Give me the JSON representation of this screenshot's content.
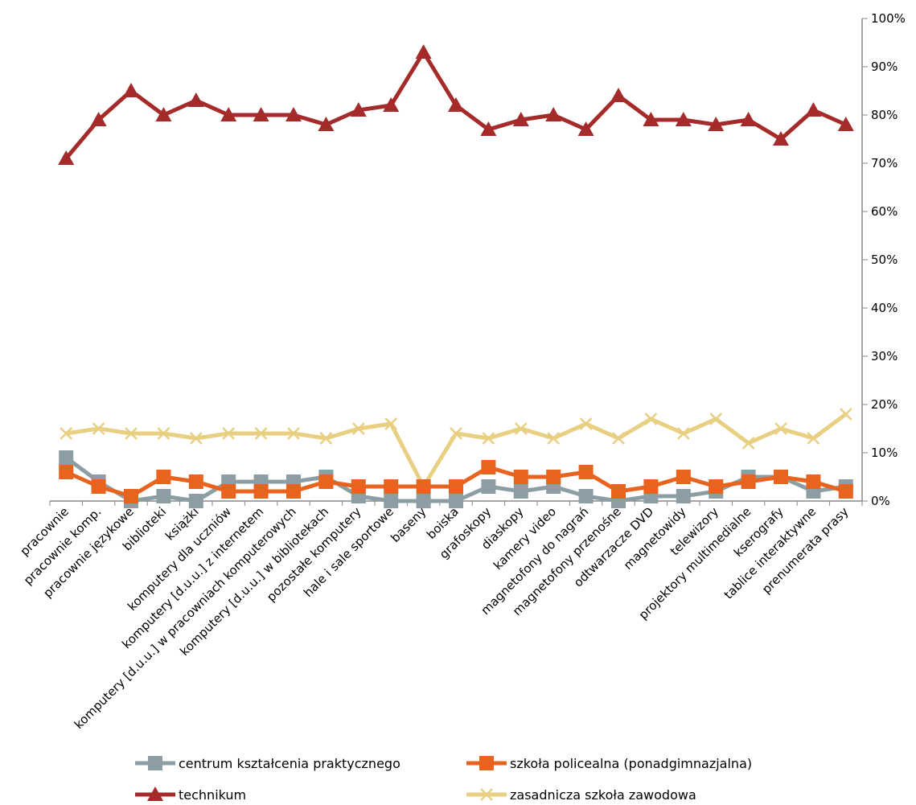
{
  "chart_data": {
    "type": "line",
    "title": "",
    "xlabel": "",
    "ylabel": "",
    "ylim": [
      0,
      100
    ],
    "y_ticks": [
      "0%",
      "10%",
      "20%",
      "30%",
      "40%",
      "50%",
      "60%",
      "70%",
      "80%",
      "90%",
      "100%"
    ],
    "y_axis_side": "right",
    "grid": false,
    "legend_position": "bottom",
    "categories": [
      "pracownie",
      "pracownie komp.",
      "pracownie językowe",
      "biblioteki",
      "książki",
      "komputery dla uczniów",
      "komputery [d.u.u.] z internetem",
      "komputery [d.u.u.]  w pracowniach komputerowych",
      "komputery [d.u.u.] w bibliotekach",
      "pozostałe komputery",
      "hale i sale sportowe",
      "baseny",
      "boiska",
      "grafoskopy",
      "diaskopy",
      "kamery video",
      "magnetofony do nagrań",
      "magnetofony przenośne",
      "odtwarzacze DVD",
      "magnetowidy",
      "telewizory",
      "projektory multimedialne",
      "kserografy",
      "tablice interaktywne",
      "prenumerata prasy"
    ],
    "series": [
      {
        "name": "centrum kształcenia praktycznego",
        "color": "#8C9EA3",
        "marker": "square",
        "values": [
          9,
          4,
          0,
          1,
          0,
          4,
          4,
          4,
          5,
          1,
          0,
          0,
          0,
          3,
          2,
          3,
          1,
          0,
          1,
          1,
          2,
          5,
          5,
          2,
          3
        ]
      },
      {
        "name": "szkoła policealna (ponadgimnazjalna)",
        "color": "#E8631E",
        "marker": "square",
        "values": [
          6,
          3,
          1,
          5,
          4,
          2,
          2,
          2,
          4,
          3,
          3,
          3,
          3,
          7,
          5,
          5,
          6,
          2,
          3,
          5,
          3,
          4,
          5,
          4,
          2
        ]
      },
      {
        "name": "technikum",
        "color": "#A52A2A",
        "marker": "triangle",
        "values": [
          71,
          79,
          85,
          80,
          83,
          80,
          80,
          80,
          78,
          81,
          82,
          93,
          82,
          77,
          79,
          80,
          77,
          84,
          79,
          79,
          78,
          79,
          75,
          81,
          78
        ]
      },
      {
        "name": "zasadnicza szkoła zawodowa",
        "color": "#E9CF81",
        "marker": "x",
        "values": [
          14,
          15,
          14,
          14,
          13,
          14,
          14,
          14,
          13,
          15,
          16,
          3,
          14,
          13,
          15,
          13,
          16,
          13,
          17,
          14,
          17,
          12,
          15,
          13,
          18
        ]
      }
    ]
  }
}
